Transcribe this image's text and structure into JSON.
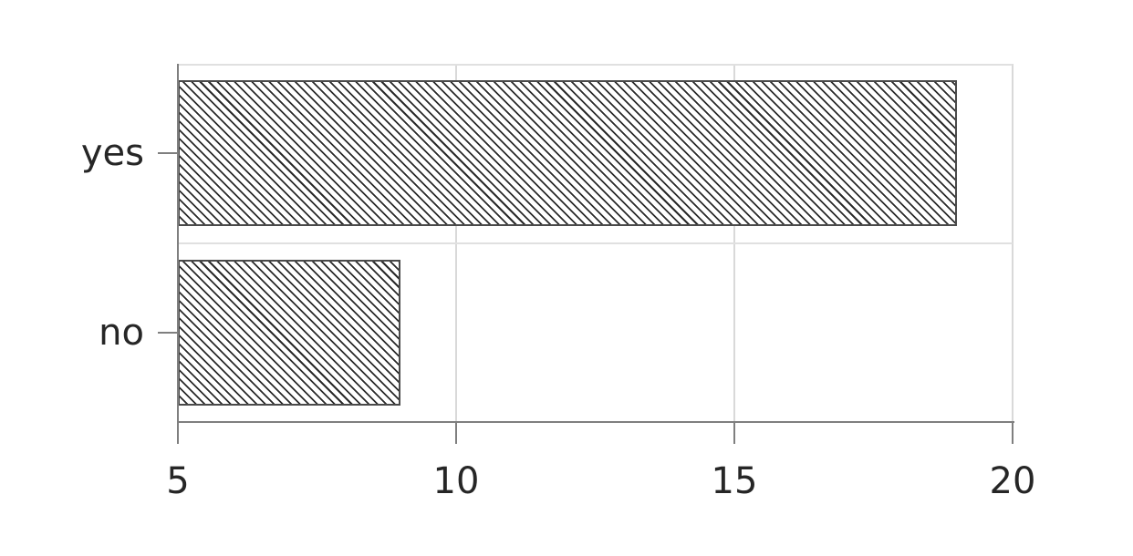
{
  "chart_data": {
    "type": "bar",
    "orientation": "horizontal",
    "title": "",
    "xlabel": "",
    "ylabel": "",
    "categories": [
      "yes",
      "no"
    ],
    "values": [
      19,
      9
    ],
    "x_ticks": [
      "5",
      "10",
      "15",
      "20"
    ],
    "x_tick_values": [
      5,
      10,
      15,
      20
    ],
    "xlim": [
      5,
      20
    ],
    "grid": true,
    "legend": false,
    "bar_style": {
      "fill_color": "#ffffff",
      "hatch": "backslash-diagonal",
      "hatch_color": "#2b2b2b",
      "edge_color": "#4a4a4a"
    },
    "axis_color": "#7f7f7f",
    "grid_color": "#d9d9d9",
    "text_color": "#262626",
    "background_color": "#ffffff"
  }
}
